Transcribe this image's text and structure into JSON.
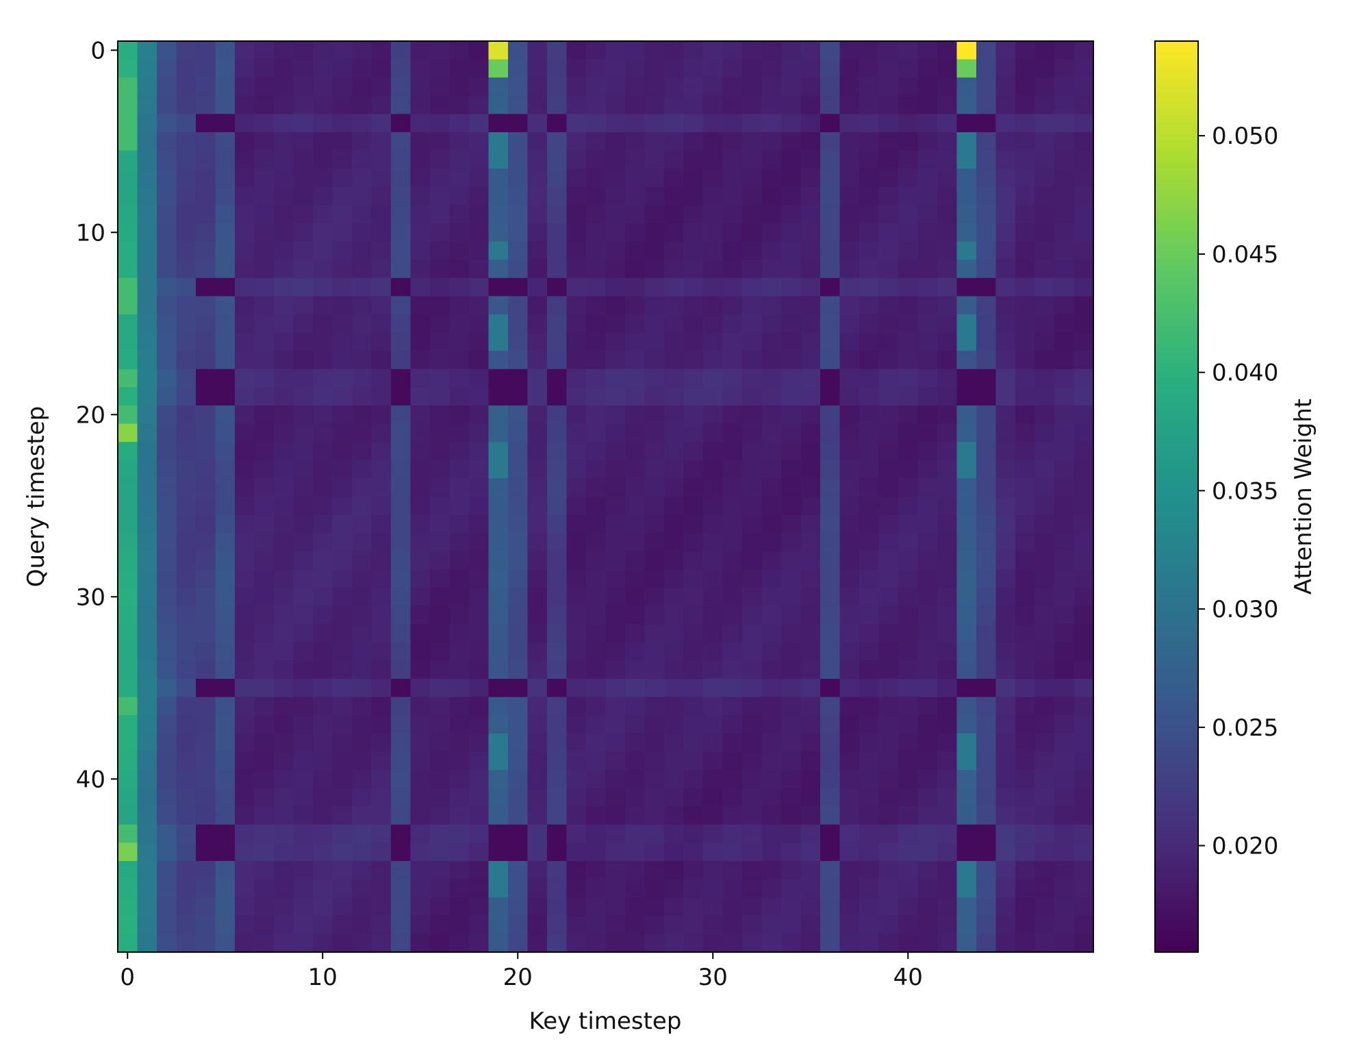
{
  "chart_data": {
    "type": "heatmap",
    "xlabel": "Key timestep",
    "ylabel": "Query timestep",
    "colorbar_label": "Attention Weight",
    "colormap": "viridis",
    "n_rows": 50,
    "n_cols": 50,
    "x_ticks": [
      0,
      10,
      20,
      30,
      40
    ],
    "y_ticks": [
      0,
      10,
      20,
      30,
      40
    ],
    "colorbar_ticks": [
      "0.020",
      "0.025",
      "0.030",
      "0.035",
      "0.040",
      "0.045",
      "0.050"
    ],
    "value_range": [
      0.0155,
      0.054
    ],
    "bright_columns": [
      0,
      1,
      4,
      5,
      14,
      19,
      20,
      22,
      36,
      43,
      44
    ],
    "dark_columns": [
      2,
      3,
      6,
      7,
      8,
      9,
      10,
      11,
      12,
      13,
      15,
      16,
      17,
      18,
      21,
      23,
      24,
      25,
      26,
      27,
      28,
      29,
      30,
      31,
      32,
      33,
      34,
      35,
      37,
      38,
      39,
      40,
      41,
      42,
      45,
      46,
      47,
      48,
      49
    ],
    "peak_cells": [
      {
        "row": 0,
        "col": 19,
        "value": 0.052
      },
      {
        "row": 0,
        "col": 43,
        "value": 0.054
      },
      {
        "row": 1,
        "col": 19,
        "value": 0.045
      },
      {
        "row": 1,
        "col": 43,
        "value": 0.045
      },
      {
        "row": 21,
        "col": 0,
        "value": 0.047
      },
      {
        "row": 44,
        "col": 0,
        "value": 0.046
      }
    ]
  }
}
